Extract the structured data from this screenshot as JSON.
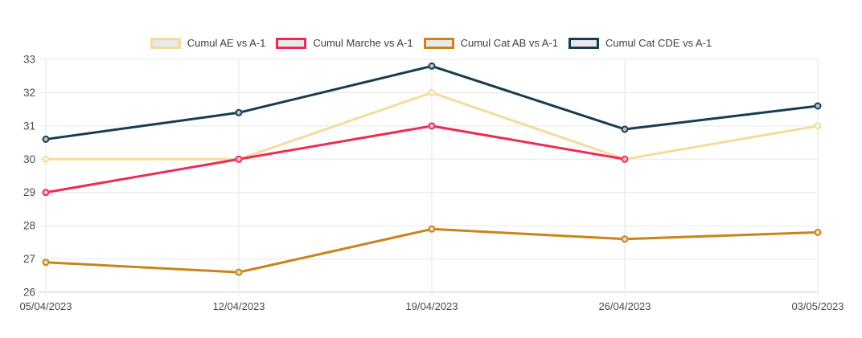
{
  "chart_data": {
    "type": "line",
    "title": "",
    "xlabel": "",
    "ylabel": "",
    "x": [
      "05/04/2023",
      "12/04/2023",
      "19/04/2023",
      "26/04/2023",
      "03/05/2023"
    ],
    "y_ticks": [
      26,
      27,
      28,
      29,
      30,
      31,
      32,
      33
    ],
    "ylim": [
      26,
      33
    ],
    "grid": true,
    "legend_position": "top-center",
    "series": [
      {
        "name": "Cumul AE vs A-1",
        "color": "#F5DBA0",
        "values": [
          30.0,
          30.0,
          32.0,
          30.0,
          31.0
        ]
      },
      {
        "name": "Cumul Marche vs A-1",
        "color": "#EE2B55",
        "values": [
          29.0,
          30.0,
          31.0,
          30.0,
          null
        ]
      },
      {
        "name": "Cumul Cat AB vs A-1",
        "color": "#C9841D",
        "values": [
          26.9,
          26.6,
          27.9,
          27.6,
          27.8
        ]
      },
      {
        "name": "Cumul Cat CDE vs A-1",
        "color": "#173C51",
        "values": [
          30.6,
          31.4,
          32.8,
          30.9,
          31.6
        ]
      }
    ],
    "colors": {
      "legend_swatch_fill": "#E9E9E9",
      "axis_text": "#4a4a4a",
      "gridline": "#e6e6e6",
      "axis_line": "#cccccc"
    }
  }
}
